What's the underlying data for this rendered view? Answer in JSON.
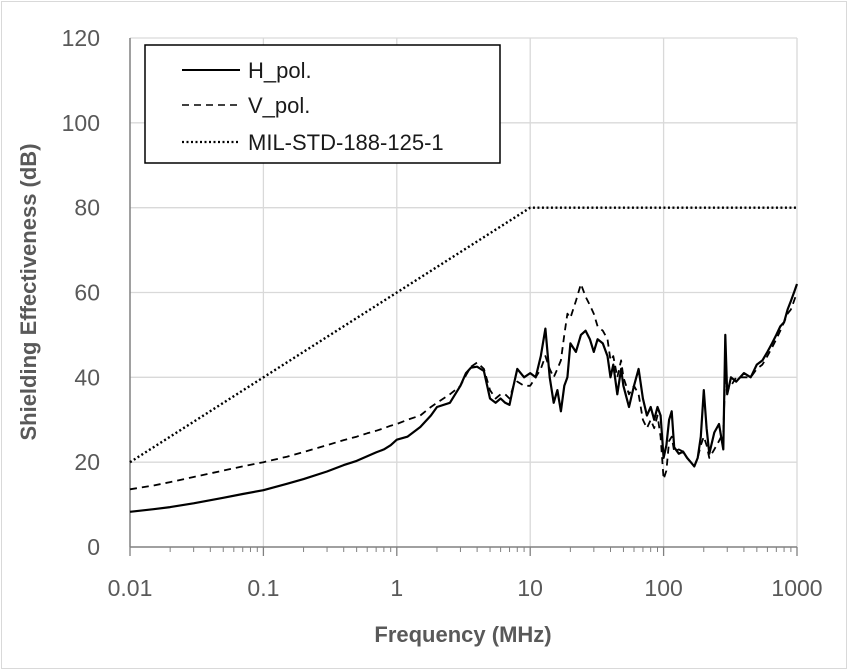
{
  "chart_data": {
    "type": "line",
    "title": "",
    "xlabel": "Frequency (MHz)",
    "ylabel": "Shielding Effectiveness (dB)",
    "x_scale": "log",
    "xlim": [
      0.01,
      1000
    ],
    "ylim": [
      0,
      120
    ],
    "x_ticks": [
      0.01,
      0.1,
      1,
      10,
      100,
      1000
    ],
    "x_tick_labels": [
      "0.01",
      "0.1",
      "1",
      "10",
      "100",
      "1000"
    ],
    "y_ticks": [
      0,
      20,
      40,
      60,
      80,
      100,
      120
    ],
    "y_tick_labels": [
      "0",
      "20",
      "40",
      "60",
      "80",
      "100",
      "120"
    ],
    "grid": "major vertical and horizontal",
    "legend_position": "top-left",
    "series": [
      {
        "name": "H_pol.",
        "style": "solid",
        "color": "#000000",
        "x": [
          0.01,
          0.015,
          0.02,
          0.03,
          0.05,
          0.07,
          0.1,
          0.15,
          0.2,
          0.3,
          0.4,
          0.5,
          0.6,
          0.7,
          0.8,
          0.9,
          1.0,
          1.2,
          1.5,
          1.8,
          2.0,
          2.5,
          3.0,
          3.3,
          3.6,
          4.0,
          4.5,
          5.0,
          5.5,
          6.0,
          6.5,
          7.0,
          7.5,
          8.0,
          9.0,
          10,
          11,
          12,
          13,
          14,
          15,
          16,
          17,
          18,
          19,
          20,
          22,
          24,
          26,
          28,
          30,
          32,
          35,
          38,
          40,
          42,
          45,
          48,
          50,
          55,
          60,
          65,
          70,
          75,
          80,
          85,
          90,
          95,
          100,
          105,
          110,
          115,
          120,
          130,
          140,
          150,
          160,
          170,
          180,
          190,
          200,
          210,
          220,
          240,
          260,
          280,
          290,
          300,
          320,
          350,
          400,
          450,
          500,
          550,
          600,
          650,
          700,
          750,
          800,
          850,
          900,
          950,
          1000
        ],
        "values": [
          8.3,
          8.9,
          9.4,
          10.3,
          11.6,
          12.5,
          13.4,
          14.9,
          16.0,
          17.8,
          19.3,
          20.3,
          21.4,
          22.3,
          23.0,
          24.0,
          25.3,
          26.0,
          28.3,
          31.0,
          33.0,
          34.0,
          38.0,
          41.0,
          42.3,
          42.5,
          41.5,
          35.0,
          34.0,
          35.0,
          34.0,
          33.5,
          38.0,
          42.0,
          40.0,
          41.0,
          40.0,
          45.0,
          51.5,
          40.0,
          34.0,
          37.0,
          32.0,
          38.0,
          40.0,
          48.0,
          46.0,
          50.0,
          51.0,
          49.0,
          46.0,
          49.0,
          48.0,
          45.0,
          40.0,
          43.0,
          36.0,
          42.0,
          38.0,
          33.0,
          38.0,
          42.0,
          35.0,
          31.0,
          33.0,
          30.0,
          33.0,
          31.0,
          21.0,
          24.0,
          30.0,
          32.0,
          23.5,
          22.0,
          22.5,
          21.0,
          20.0,
          19.0,
          21.0,
          26.0,
          37.0,
          28.0,
          22.0,
          27.0,
          29.0,
          23.0,
          50.0,
          36.0,
          40.0,
          39.0,
          41.0,
          40.0,
          43.0,
          44.0,
          46.0,
          48.0,
          50.0,
          52.0,
          53.0,
          56.0,
          58.0,
          60.0,
          62.0
        ]
      },
      {
        "name": "V_pol.",
        "style": "dashed",
        "color": "#000000",
        "x": [
          0.01,
          0.015,
          0.02,
          0.03,
          0.05,
          0.07,
          0.1,
          0.15,
          0.2,
          0.3,
          0.4,
          0.5,
          0.6,
          0.7,
          0.8,
          0.9,
          1.0,
          1.2,
          1.5,
          1.8,
          2.0,
          2.5,
          3.0,
          3.3,
          3.6,
          4.0,
          4.5,
          5.0,
          5.5,
          6.0,
          6.5,
          7.0,
          7.5,
          8.0,
          9.0,
          10,
          11,
          12,
          13,
          14,
          15,
          16,
          17,
          18,
          19,
          20,
          22,
          24,
          26,
          28,
          30,
          32,
          35,
          38,
          40,
          42,
          45,
          48,
          50,
          55,
          60,
          65,
          70,
          75,
          80,
          85,
          90,
          95,
          100,
          105,
          110,
          115,
          120,
          130,
          140,
          150,
          160,
          170,
          180,
          190,
          200,
          210,
          220,
          240,
          260,
          280,
          290,
          300,
          320,
          350,
          400,
          450,
          500,
          550,
          600,
          650,
          700,
          750,
          800,
          850,
          900,
          950,
          1000
        ],
        "values": [
          13.6,
          14.5,
          15.3,
          16.5,
          18.0,
          19.0,
          20.0,
          21.3,
          22.4,
          24.0,
          25.2,
          26.0,
          26.8,
          27.4,
          28.0,
          28.6,
          29.0,
          30.0,
          31.0,
          33.0,
          34.0,
          36.0,
          38.0,
          40.5,
          42.5,
          43.5,
          42.0,
          37.0,
          35.0,
          36.0,
          36.0,
          35.0,
          38.0,
          39.0,
          38.0,
          38.0,
          40.0,
          42.0,
          45.0,
          42.0,
          40.0,
          42.0,
          44.0,
          50.0,
          55.0,
          54.0,
          58.0,
          62.0,
          59.0,
          57.0,
          55.0,
          52.0,
          51.0,
          49.0,
          44.0,
          45.0,
          40.0,
          44.0,
          40.0,
          36.0,
          38.0,
          36.0,
          30.0,
          28.0,
          30.0,
          28.0,
          31.0,
          26.0,
          16.0,
          18.0,
          25.0,
          26.0,
          22.5,
          23.0,
          22.5,
          21.0,
          20.0,
          19.0,
          21.0,
          24.0,
          26.0,
          24.0,
          21.0,
          23.0,
          25.0,
          27.0,
          41.0,
          37.0,
          38.0,
          40.0,
          40.0,
          40.0,
          42.0,
          43.0,
          45.0,
          47.0,
          49.0,
          51.0,
          53.0,
          55.0,
          56.0,
          58.0,
          60.0
        ]
      },
      {
        "name": "MIL-STD-188-125-1",
        "style": "dotted",
        "color": "#000000",
        "x": [
          0.01,
          10,
          1000
        ],
        "values": [
          20,
          80,
          80
        ]
      }
    ]
  }
}
